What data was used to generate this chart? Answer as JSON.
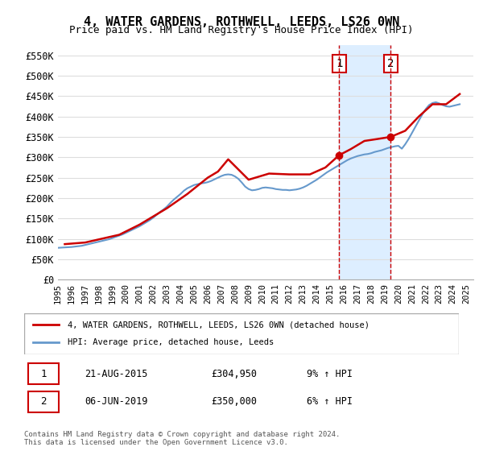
{
  "title": "4, WATER GARDENS, ROTHWELL, LEEDS, LS26 0WN",
  "subtitle": "Price paid vs. HM Land Registry's House Price Index (HPI)",
  "ylabel_ticks": [
    "£0",
    "£50K",
    "£100K",
    "£150K",
    "£200K",
    "£250K",
    "£300K",
    "£350K",
    "£400K",
    "£450K",
    "£500K",
    "£550K"
  ],
  "ytick_values": [
    0,
    50000,
    100000,
    150000,
    200000,
    250000,
    300000,
    350000,
    400000,
    450000,
    500000,
    550000
  ],
  "ylim": [
    0,
    575000
  ],
  "xlim_start": 1995.0,
  "xlim_end": 2025.5,
  "marker1_x": 2015.64,
  "marker1_y": 304950,
  "marker2_x": 2019.43,
  "marker2_y": 350000,
  "marker1_label": "1",
  "marker2_label": "2",
  "marker1_date": "21-AUG-2015",
  "marker1_price": "£304,950",
  "marker1_hpi": "9% ↑ HPI",
  "marker2_date": "06-JUN-2019",
  "marker2_price": "£350,000",
  "marker2_hpi": "6% ↑ HPI",
  "line_property_color": "#cc0000",
  "line_hpi_color": "#6699cc",
  "shade_color": "#ddeeff",
  "vline_color": "#cc0000",
  "legend_property_label": "4, WATER GARDENS, ROTHWELL, LEEDS, LS26 0WN (detached house)",
  "legend_hpi_label": "HPI: Average price, detached house, Leeds",
  "footnote": "Contains HM Land Registry data © Crown copyright and database right 2024.\nThis data is licensed under the Open Government Licence v3.0.",
  "xtick_years": [
    1995,
    1996,
    1997,
    1998,
    1999,
    2000,
    2001,
    2002,
    2003,
    2004,
    2005,
    2006,
    2007,
    2008,
    2009,
    2010,
    2011,
    2012,
    2013,
    2014,
    2015,
    2016,
    2017,
    2018,
    2019,
    2020,
    2021,
    2022,
    2023,
    2024,
    2025
  ],
  "hpi_data_x": [
    1995,
    1995.25,
    1995.5,
    1995.75,
    1996,
    1996.25,
    1996.5,
    1996.75,
    1997,
    1997.25,
    1997.5,
    1997.75,
    1998,
    1998.25,
    1998.5,
    1998.75,
    1999,
    1999.25,
    1999.5,
    1999.75,
    2000,
    2000.25,
    2000.5,
    2000.75,
    2001,
    2001.25,
    2001.5,
    2001.75,
    2002,
    2002.25,
    2002.5,
    2002.75,
    2003,
    2003.25,
    2003.5,
    2003.75,
    2004,
    2004.25,
    2004.5,
    2004.75,
    2005,
    2005.25,
    2005.5,
    2005.75,
    2006,
    2006.25,
    2006.5,
    2006.75,
    2007,
    2007.25,
    2007.5,
    2007.75,
    2008,
    2008.25,
    2008.5,
    2008.75,
    2009,
    2009.25,
    2009.5,
    2009.75,
    2010,
    2010.25,
    2010.5,
    2010.75,
    2011,
    2011.25,
    2011.5,
    2011.75,
    2012,
    2012.25,
    2012.5,
    2012.75,
    2013,
    2013.25,
    2013.5,
    2013.75,
    2014,
    2014.25,
    2014.5,
    2014.75,
    2015,
    2015.25,
    2015.5,
    2015.75,
    2016,
    2016.25,
    2016.5,
    2016.75,
    2017,
    2017.25,
    2017.5,
    2017.75,
    2018,
    2018.25,
    2018.5,
    2018.75,
    2019,
    2019.25,
    2019.5,
    2019.75,
    2020,
    2020.25,
    2020.5,
    2020.75,
    2021,
    2021.25,
    2021.5,
    2021.75,
    2022,
    2022.25,
    2022.5,
    2022.75,
    2023,
    2023.25,
    2023.5,
    2023.75,
    2024,
    2024.25,
    2024.5
  ],
  "hpi_data_y": [
    78000,
    78500,
    79000,
    79500,
    80000,
    81000,
    82000,
    83000,
    85000,
    87000,
    89000,
    91000,
    93000,
    95000,
    97000,
    99000,
    102000,
    105000,
    108000,
    111000,
    115000,
    119000,
    123000,
    127000,
    131000,
    136000,
    141000,
    146000,
    152000,
    159000,
    166000,
    172000,
    179000,
    188000,
    196000,
    203000,
    210000,
    218000,
    224000,
    228000,
    232000,
    234000,
    236000,
    237000,
    239000,
    242000,
    246000,
    250000,
    254000,
    257000,
    258000,
    257000,
    253000,
    247000,
    238000,
    228000,
    222000,
    219000,
    220000,
    222000,
    225000,
    226000,
    225000,
    224000,
    222000,
    221000,
    220000,
    220000,
    219000,
    220000,
    221000,
    223000,
    226000,
    230000,
    235000,
    240000,
    245000,
    251000,
    257000,
    263000,
    268000,
    273000,
    278000,
    283000,
    288000,
    293000,
    297000,
    300000,
    303000,
    305000,
    307000,
    308000,
    310000,
    313000,
    315000,
    317000,
    320000,
    323000,
    325000,
    327000,
    328000,
    321000,
    332000,
    345000,
    360000,
    375000,
    390000,
    405000,
    418000,
    428000,
    433000,
    435000,
    432000,
    428000,
    425000,
    424000,
    426000,
    428000,
    430000
  ],
  "prop_data_x": [
    1995.5,
    1997.0,
    1999.5,
    2001.0,
    2003.0,
    2004.5,
    2006.0,
    2006.75,
    2007.5,
    2009.0,
    2010.5,
    2012.0,
    2013.5,
    2014.64,
    2015.64,
    2016.5,
    2017.5,
    2018.5,
    2019.43,
    2020.5,
    2021.5,
    2022.5,
    2023.5,
    2024.5
  ],
  "prop_data_y": [
    87000,
    91000,
    110000,
    135000,
    175000,
    210000,
    250000,
    265000,
    295000,
    245000,
    260000,
    258000,
    258000,
    275000,
    304950,
    320000,
    340000,
    345000,
    350000,
    365000,
    400000,
    430000,
    430000,
    455000
  ]
}
